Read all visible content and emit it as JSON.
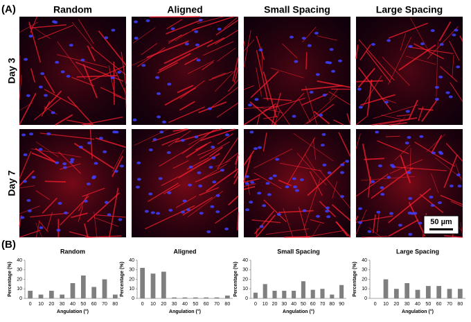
{
  "panel_a": {
    "label": "(A)",
    "columns": [
      "Random",
      "Aligned",
      "Small Spacing",
      "Large Spacing"
    ],
    "rows": [
      "Day 3",
      "Day 7"
    ],
    "scale_bar": "50 µm"
  },
  "panel_b_label": "(B)",
  "chart_data": [
    {
      "type": "bar",
      "title": "Random",
      "categories": [
        "0",
        "10",
        "20",
        "30",
        "40",
        "50",
        "60",
        "70",
        "80"
      ],
      "values": [
        8,
        4,
        8,
        4,
        16,
        24,
        12,
        20,
        4
      ],
      "color": "#7f7f7f",
      "ylim": [
        0,
        40
      ],
      "yticks": [
        0,
        10,
        20,
        30,
        40
      ],
      "ylabel": "Percentage (%)",
      "xlabel": "Angulation (°)"
    },
    {
      "type": "bar",
      "title": "Aligned",
      "categories": [
        "0",
        "10",
        "20",
        "30",
        "40",
        "50",
        "60",
        "70",
        "80"
      ],
      "values": [
        32,
        26,
        28,
        1,
        1,
        1,
        1,
        1,
        3
      ],
      "color": "#7f7f7f",
      "ylim": [
        0,
        40
      ],
      "yticks": [
        0,
        10,
        20,
        30,
        40
      ],
      "ylabel": "Percentage (%)",
      "xlabel": "Angulation (°)"
    },
    {
      "type": "bar",
      "title": "Small Spacing",
      "categories": [
        "0",
        "10",
        "20",
        "30",
        "40",
        "50",
        "60",
        "70",
        "80",
        "90"
      ],
      "values": [
        6,
        15,
        8,
        8,
        8,
        18,
        9,
        10,
        4,
        14
      ],
      "color": "#7f7f7f",
      "ylim": [
        0,
        40
      ],
      "yticks": [
        0,
        10,
        20,
        30,
        40
      ],
      "ylabel": "Percentage (%)",
      "xlabel": "Angulation (°)"
    },
    {
      "type": "bar",
      "title": "Large Spacing",
      "categories": [
        "0",
        "10",
        "20",
        "30",
        "40",
        "50",
        "60",
        "70",
        "80"
      ],
      "values": [
        0,
        20,
        10,
        16,
        9,
        13,
        13,
        10,
        10
      ],
      "color": "#7f7f7f",
      "ylim": [
        0,
        40
      ],
      "yticks": [
        0,
        10,
        20,
        30,
        40
      ],
      "ylabel": "Percentage (%)",
      "xlabel": "Angulation (°)"
    }
  ]
}
